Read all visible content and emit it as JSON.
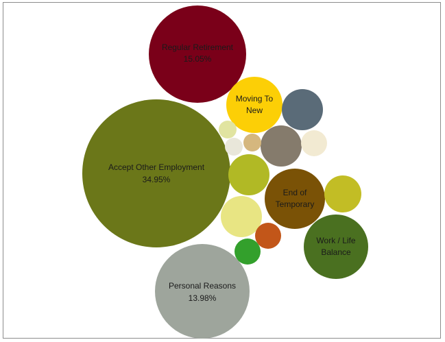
{
  "chart_data": {
    "type": "bubble",
    "items": [
      {
        "name": "Accept Other Employment",
        "value": "34.95%",
        "color": "#6b7719",
        "text_color": "#1a1a1a"
      },
      {
        "name": "Regular Retirement",
        "value": "15.05%",
        "color": "#7a0019",
        "text_color": "#1a1a1a"
      },
      {
        "name": "Personal Reasons",
        "value": "13.98%",
        "color": "#9ea59c",
        "text_color": "#1a1a1a"
      },
      {
        "name": "Moving To New",
        "value": "",
        "color": "#fccf06",
        "text_color": "#1a1a1a"
      },
      {
        "name": "End of Temporary",
        "value": "",
        "color": "#7a5206",
        "text_color": "#1a1a1a"
      },
      {
        "name": "Work / Life Balance",
        "value": "",
        "color": "#4a7020",
        "text_color": "#1a1a1a"
      },
      {
        "name": "",
        "value": "",
        "color": "#5a6b78"
      },
      {
        "name": "",
        "value": "",
        "color": "#857b6c"
      },
      {
        "name": "",
        "value": "",
        "color": "#b1b925"
      },
      {
        "name": "",
        "value": "",
        "color": "#e8e583"
      },
      {
        "name": "",
        "value": "",
        "color": "#c2bd25"
      },
      {
        "name": "",
        "value": "",
        "color": "#c25619"
      },
      {
        "name": "",
        "value": "",
        "color": "#33a02c"
      },
      {
        "name": "",
        "value": "",
        "color": "#f2ead2"
      },
      {
        "name": "",
        "value": "",
        "color": "#d5b77e"
      },
      {
        "name": "",
        "value": "",
        "color": "#e1e4a1"
      },
      {
        "name": "",
        "value": "",
        "color": "#e9e7da"
      }
    ]
  }
}
